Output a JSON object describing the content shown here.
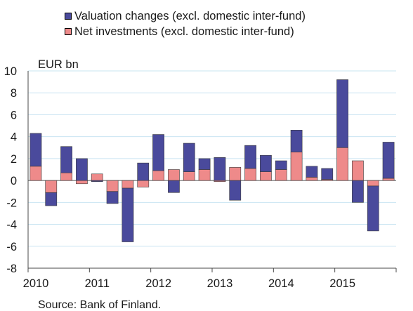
{
  "chart_data": {
    "type": "bar",
    "stacked": true,
    "ylabel": "EUR bn",
    "ylim": [
      -8,
      10
    ],
    "yticks": [
      -8,
      -6,
      -4,
      -2,
      0,
      2,
      4,
      6,
      8,
      10
    ],
    "xtick_labels": [
      "2010",
      "2011",
      "2012",
      "2013",
      "2014",
      "2015"
    ],
    "grid": "horizontal",
    "legend_position": "top",
    "categories": [
      "2010Q1",
      "2010Q2",
      "2010Q3",
      "2010Q4",
      "2011Q1",
      "2011Q2",
      "2011Q3",
      "2011Q4",
      "2012Q1",
      "2012Q2",
      "2012Q3",
      "2012Q4",
      "2013Q1",
      "2013Q2",
      "2013Q3",
      "2013Q4",
      "2014Q1",
      "2014Q2",
      "2014Q3",
      "2014Q4",
      "2015Q1",
      "2015Q2",
      "2015Q3",
      "2015Q4"
    ],
    "series": [
      {
        "name": "Valuation changes (excl. domestic inter-fund)",
        "color": "#4a4a9c",
        "values": [
          3.0,
          -1.2,
          2.4,
          2.0,
          -0.1,
          -1.1,
          -4.9,
          1.6,
          3.3,
          -1.1,
          2.6,
          1.0,
          2.1,
          -1.8,
          2.1,
          1.5,
          0.8,
          2.0,
          1.0,
          1.0,
          6.2,
          -2.0,
          -4.1,
          3.3
        ]
      },
      {
        "name": "Net investments (excl. domestic inter-fund)",
        "color": "#ee8a8a",
        "values": [
          1.3,
          -1.1,
          0.7,
          -0.3,
          0.6,
          -1.0,
          -0.7,
          -0.6,
          0.9,
          1.0,
          0.8,
          1.0,
          -0.1,
          1.2,
          1.1,
          0.8,
          1.0,
          2.6,
          0.3,
          0.1,
          3.0,
          1.8,
          -0.5,
          0.2
        ]
      }
    ]
  },
  "source": "Source: Bank of Finland."
}
